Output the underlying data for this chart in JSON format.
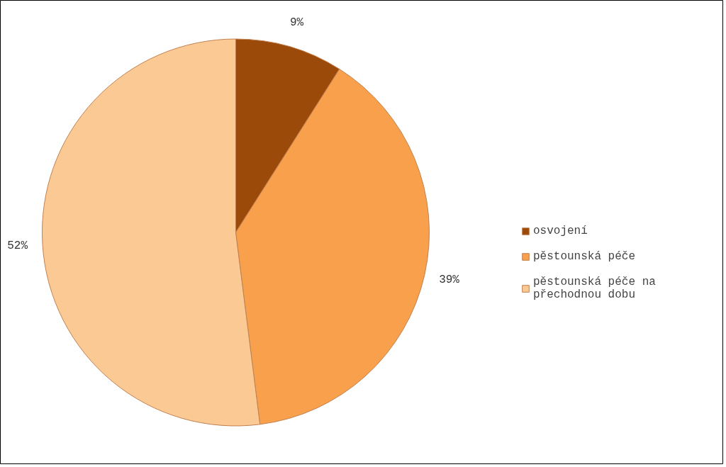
{
  "chart_data": {
    "type": "pie",
    "categories": [
      "osvojení",
      "pěstounská péče",
      "pěstounská péče na přechodnou dobu"
    ],
    "values": [
      9,
      39,
      52
    ],
    "colors": [
      "#9c4a0a",
      "#f9a04d",
      "#fbc994"
    ],
    "value_labels": [
      "9%",
      "39%",
      "52%"
    ],
    "legend": "right"
  }
}
